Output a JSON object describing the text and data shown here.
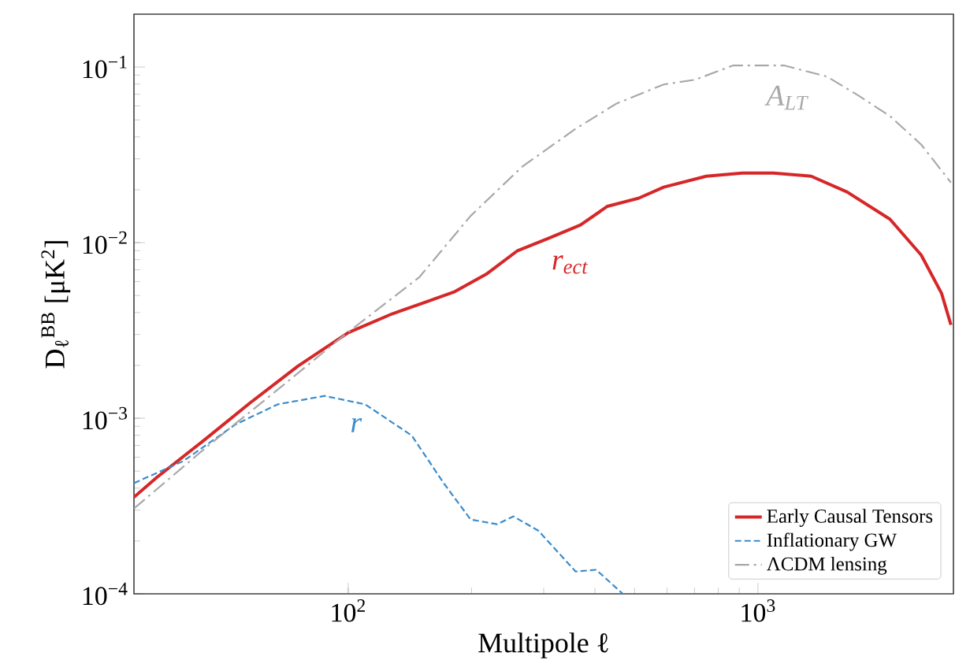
{
  "chart_data": {
    "type": "line",
    "xlabel": "Multipole ℓ",
    "ylabel": "D$_{ℓ}$$^{BB}$ [μK$^{2}$]",
    "log": "xy",
    "xlim": [
      30,
      3000
    ],
    "ylim": [
      0.0001,
      0.2
    ],
    "xticks": [
      {
        "value": 100,
        "label": "10$^{2}$"
      },
      {
        "value": 1000,
        "label": "10$^{3}$"
      }
    ],
    "yticks": [
      {
        "value": 0.0001,
        "label": "10$^{−4}$"
      },
      {
        "value": 0.001,
        "label": "10$^{−3}$"
      },
      {
        "value": 0.01,
        "label": "10$^{−2}$"
      },
      {
        "value": 0.1,
        "label": "10$^{−1}$"
      }
    ],
    "legend": "bottom right",
    "grid": false,
    "series": [
      {
        "name": "Early Causal Tensors",
        "color": "#d62728",
        "line_style": "solid",
        "x": [
          30,
          34.1,
          44.5,
          57.8,
          75.4,
          100,
          128,
          153,
          182,
          217,
          259,
          309,
          369,
          429,
          511,
          589,
          748,
          916,
          1092,
          1349,
          1652,
          2099,
          2502,
          2806,
          2958
        ],
        "values": [
          0.000355,
          0.00046,
          0.00075,
          0.00123,
          0.00198,
          0.00307,
          0.00393,
          0.00455,
          0.00526,
          0.0066,
          0.009,
          0.0106,
          0.0126,
          0.0161,
          0.0179,
          0.0207,
          0.0239,
          0.0249,
          0.0249,
          0.0239,
          0.0194,
          0.0136,
          0.0085,
          0.00515,
          0.0034
        ]
      },
      {
        "name": "Inflationary GW",
        "color": "#3a8ccc",
        "line_style": "dashed",
        "x": [
          30,
          39.6,
          53,
          67.3,
          87.6,
          110,
          143,
          171,
          199,
          231,
          253,
          291,
          359,
          403,
          468
        ],
        "values": [
          0.000427,
          0.00057,
          0.00092,
          0.0012,
          0.00134,
          0.0012,
          0.000796,
          0.000427,
          0.000265,
          0.000249,
          0.000276,
          0.000229,
          0.000134,
          0.000137,
          0.0001
        ]
      },
      {
        "name": "ΛCDM lensing",
        "color": "#a8a8a8",
        "line_style": "dashdot",
        "x": [
          30,
          45.6,
          71,
          98.3,
          149,
          199,
          266,
          359,
          452,
          589,
          703,
          869,
          1036,
          1161,
          1474,
          1757,
          2099,
          2502,
          2958
        ],
        "values": [
          0.000306,
          0.0007,
          0.00161,
          0.003,
          0.00634,
          0.0142,
          0.0271,
          0.0445,
          0.062,
          0.0796,
          0.0847,
          0.102,
          0.102,
          0.102,
          0.0883,
          0.0689,
          0.0526,
          0.0362,
          0.022
        ]
      }
    ],
    "annotations": [
      "r$_{ect}$",
      "r",
      "A$_{LT}$"
    ]
  }
}
